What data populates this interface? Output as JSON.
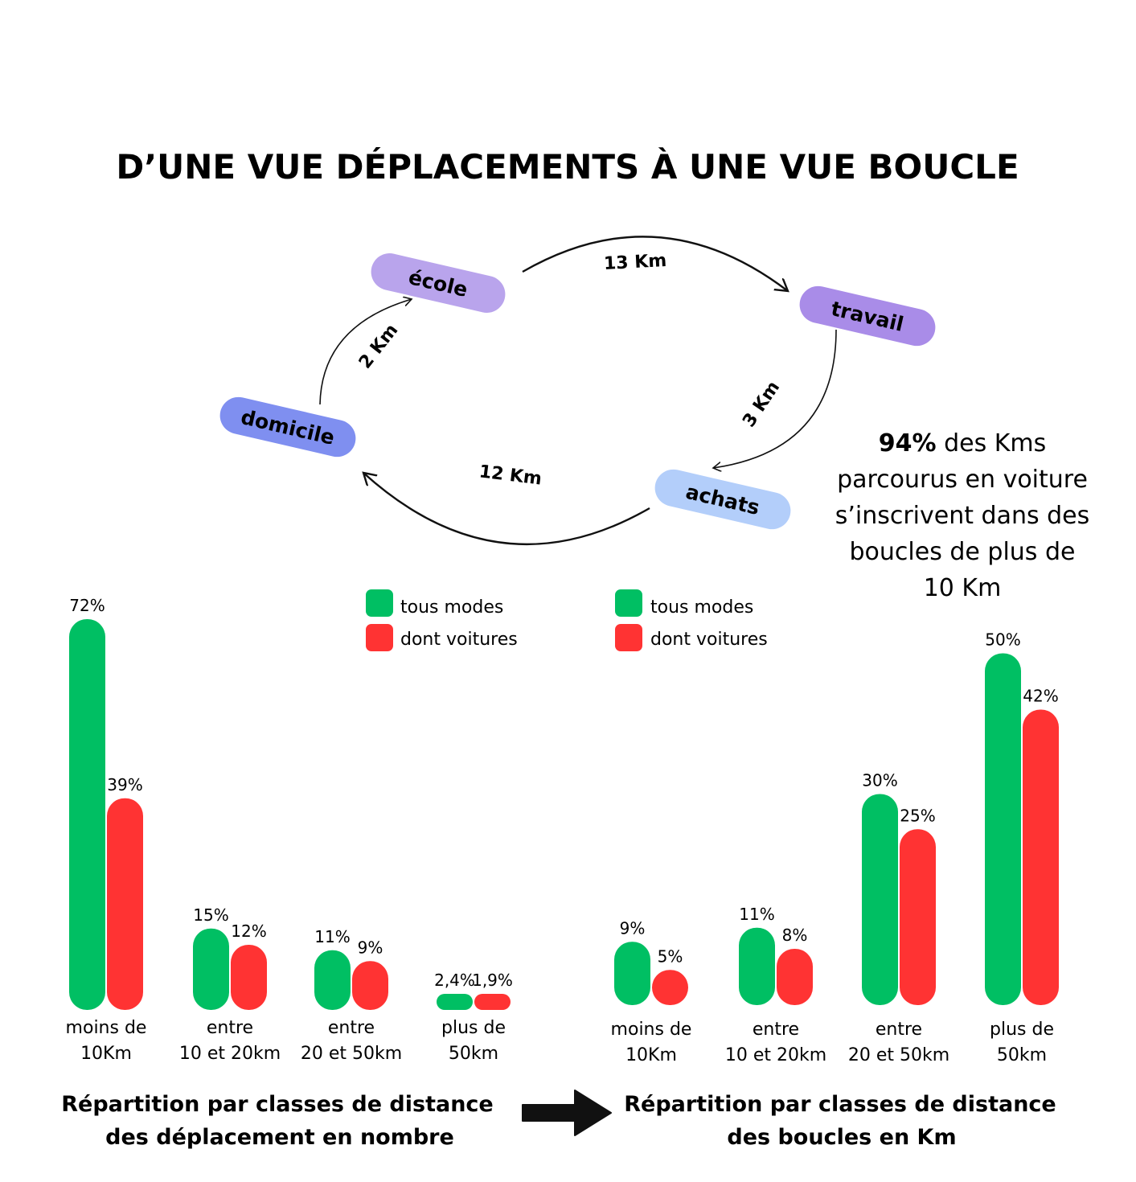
{
  "title": "D’UNE VUE DÉPLACEMENTS À UNE VUE BOUCLE",
  "colors": {
    "green": "#00bf63",
    "red": "#ff3333",
    "ecole": "#b9a4ec",
    "travail": "#a98ce8",
    "domicile": "#7f8ff0",
    "achats": "#b3cefa"
  },
  "loop": {
    "nodes": {
      "ecole": "école",
      "travail": "travail",
      "domicile": "domicile",
      "achats": "achats"
    },
    "distances": {
      "ecole_travail": "13 Km",
      "travail_achats": "3 Km",
      "achats_domicile": "12 Km",
      "domicile_ecole": "2 Km"
    }
  },
  "note": {
    "bold": "94%",
    "lines": [
      " des Kms",
      "parcourus en voiture",
      "s’inscrivent dans des",
      "boucles de plus de",
      "10 Km"
    ]
  },
  "legend": {
    "all": "tous modes",
    "cars": "dont voitures"
  },
  "chart_data": [
    {
      "type": "bar",
      "title": "Répartition par classes de distance des déplacement en nombre",
      "categories": [
        [
          "moins de",
          "10Km"
        ],
        [
          "entre",
          "10 et 20km"
        ],
        [
          "entre",
          "20 et 50km"
        ],
        [
          "plus de",
          "50km"
        ]
      ],
      "series": [
        {
          "name": "tous modes",
          "values": [
            72,
            15,
            11,
            2.4
          ],
          "labels": [
            "72%",
            "15%",
            "11%",
            "2,4%"
          ]
        },
        {
          "name": "dont voitures",
          "values": [
            39,
            12,
            9,
            1.9
          ],
          "labels": [
            "39%",
            "12%",
            "9%",
            "1,9%"
          ]
        }
      ]
    },
    {
      "type": "bar",
      "title": "Répartition par classes de distance des boucles en Km",
      "categories": [
        [
          "moins de",
          "10Km"
        ],
        [
          "entre",
          "10 et 20km"
        ],
        [
          "entre",
          "20 et 50km"
        ],
        [
          "plus de",
          "50km"
        ]
      ],
      "series": [
        {
          "name": "tous modes",
          "values": [
            9,
            11,
            30,
            50
          ],
          "labels": [
            "9%",
            "11%",
            "30%",
            "50%"
          ]
        },
        {
          "name": "dont voitures",
          "values": [
            5,
            8,
            25,
            42
          ],
          "labels": [
            "5%",
            "8%",
            "25%",
            "42%"
          ]
        }
      ]
    }
  ],
  "captions": {
    "left": [
      "Répartition par classes de distance",
      "des déplacement en nombre"
    ],
    "right": [
      "Répartition par classes de distance",
      "des boucles en Km"
    ]
  }
}
